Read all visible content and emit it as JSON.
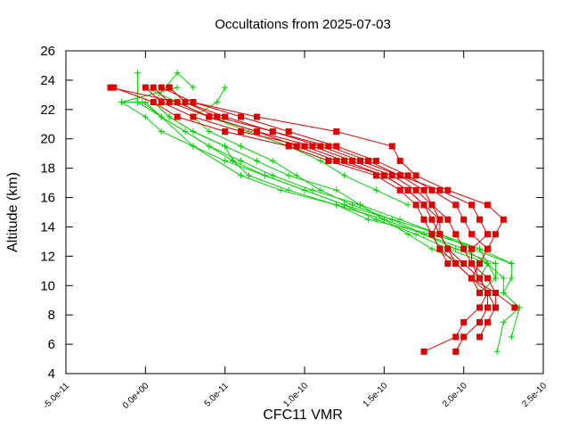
{
  "chart_data": {
    "type": "line",
    "title": "Occultations from 2025-07-03",
    "xlabel": "CFC11 VMR",
    "ylabel": "Altitude (km)",
    "xlim": [
      -5e-11,
      2.5e-10
    ],
    "ylim": [
      4,
      26
    ],
    "x_ticks": [
      -5e-11,
      0,
      5e-11,
      1e-10,
      1.5e-10,
      2e-10,
      2.5e-10
    ],
    "x_tick_labels": [
      "-5.0e-11",
      "0.0e+00",
      "5.0e-11",
      "1.0e-10",
      "1.5e-10",
      "2.0e-10",
      "2.5e-10"
    ],
    "y_ticks": [
      4,
      6,
      8,
      10,
      12,
      14,
      16,
      18,
      20,
      22,
      24,
      26
    ],
    "y_tick_labels": [
      "4",
      "6",
      "8",
      "10",
      "12",
      "14",
      "16",
      "18",
      "20",
      "22",
      "24",
      "26"
    ],
    "grid": false,
    "legend": "none",
    "colors": {
      "green": "#00d000",
      "red": "#e00000"
    },
    "series": [
      {
        "color": "green",
        "marker": "plus",
        "points": [
          [
            2.21e-10,
            5.5
          ],
          [
            2.25e-10,
            7.5
          ],
          [
            2.35e-10,
            8.5
          ],
          [
            2.25e-10,
            9.5
          ],
          [
            2.3e-10,
            10.5
          ],
          [
            2.3e-10,
            11.5
          ],
          [
            2.1e-10,
            12.5
          ],
          [
            1.8e-10,
            13.5
          ],
          [
            1.4e-10,
            14.5
          ],
          [
            1.2e-10,
            15.5
          ],
          [
            8.5e-11,
            16.5
          ],
          [
            6e-11,
            17.5
          ],
          [
            3e-11,
            19.5
          ],
          [
            1e-11,
            21.5
          ],
          [
            -5e-12,
            22.5
          ],
          [
            -5e-12,
            24.5
          ]
        ]
      },
      {
        "color": "green",
        "marker": "plus",
        "points": [
          [
            2.3e-10,
            6.5
          ],
          [
            2.35e-10,
            8.5
          ],
          [
            2.25e-10,
            9.5
          ],
          [
            2.25e-10,
            10.5
          ],
          [
            2.15e-10,
            11.5
          ],
          [
            2.1e-10,
            12.5
          ],
          [
            1.85e-10,
            13.5
          ],
          [
            1.55e-10,
            14.5
          ],
          [
            1.25e-10,
            15.5
          ],
          [
            1e-10,
            16.5
          ],
          [
            7.5e-11,
            17.5
          ],
          [
            5e-11,
            18.5
          ],
          [
            3e-11,
            19.5
          ],
          [
            1e-11,
            20.5
          ],
          [
            0,
            21.5
          ],
          [
            -1.5e-11,
            22.5
          ],
          [
            2e-11,
            23.5
          ]
        ]
      },
      {
        "color": "green",
        "marker": "plus",
        "points": [
          [
            2.1e-10,
            9.5
          ],
          [
            2.2e-10,
            10.5
          ],
          [
            2.15e-10,
            11.5
          ],
          [
            2e-10,
            12.5
          ],
          [
            1.75e-10,
            13.5
          ],
          [
            1.5e-10,
            14.5
          ],
          [
            1.2e-10,
            15.5
          ],
          [
            9e-11,
            16.5
          ],
          [
            6.5e-11,
            17.5
          ],
          [
            5.5e-11,
            18.5
          ],
          [
            5e-11,
            19.5
          ],
          [
            3e-11,
            20.5
          ],
          [
            1.5e-11,
            21.5
          ],
          [
            5e-12,
            22.5
          ],
          [
            2e-11,
            24.5
          ],
          [
            3e-11,
            23.5
          ]
        ]
      },
      {
        "color": "green",
        "marker": "plus",
        "points": [
          [
            2.3e-10,
            11.5
          ],
          [
            2.05e-10,
            12.5
          ],
          [
            1.85e-10,
            13.5
          ],
          [
            1.6e-10,
            14.5
          ],
          [
            1.35e-10,
            15.5
          ],
          [
            1.05e-10,
            16.5
          ],
          [
            8e-11,
            17.5
          ],
          [
            6e-11,
            18.5
          ],
          [
            4e-11,
            19.5
          ],
          [
            2.5e-11,
            20.5
          ],
          [
            1e-11,
            21.5
          ],
          [
            -2e-12,
            22.5
          ],
          [
            -1.5e-11,
            22.5
          ]
        ]
      },
      {
        "color": "green",
        "marker": "plus",
        "points": [
          [
            2.2e-10,
            10.5
          ],
          [
            2.2e-10,
            11.5
          ],
          [
            1.95e-10,
            12.5
          ],
          [
            1.75e-10,
            13.5
          ],
          [
            1.55e-10,
            14.5
          ],
          [
            1.3e-10,
            15.5
          ],
          [
            1.1e-10,
            16.5
          ],
          [
            9.5e-11,
            17.5
          ],
          [
            8e-11,
            18.5
          ],
          [
            6e-11,
            19.5
          ],
          [
            4e-11,
            20.5
          ],
          [
            3e-11,
            21.5
          ],
          [
            4.5e-11,
            22.5
          ],
          [
            5e-11,
            23.5
          ]
        ]
      },
      {
        "color": "green",
        "marker": "plus",
        "points": [
          [
            2.1e-10,
            10.5
          ],
          [
            2.15e-10,
            11.5
          ],
          [
            1.9e-10,
            12.5
          ],
          [
            1.7e-10,
            13.5
          ],
          [
            1.45e-10,
            14.5
          ],
          [
            1.25e-10,
            15.5
          ],
          [
            1e-10,
            16.5
          ],
          [
            7.5e-11,
            17.5
          ],
          [
            5.5e-11,
            18.5
          ],
          [
            4e-11,
            19.5
          ],
          [
            2.5e-11,
            20.5
          ],
          [
            1e-11,
            21.5
          ],
          [
            0,
            22.5
          ]
        ]
      },
      {
        "color": "green",
        "marker": "plus",
        "points": [
          [
            1.65e-10,
            15.5
          ],
          [
            1.45e-10,
            16.5
          ],
          [
            1.25e-10,
            17.5
          ],
          [
            1.1e-10,
            18.5
          ],
          [
            9e-11,
            19.5
          ],
          [
            6.5e-11,
            20.5
          ],
          [
            4e-11,
            21.5
          ],
          [
            2e-11,
            22.5
          ],
          [
            0,
            23.5
          ]
        ]
      },
      {
        "color": "green",
        "marker": "plus",
        "points": [
          [
            2e-10,
            11.5
          ],
          [
            1.8e-10,
            12.5
          ],
          [
            1.65e-10,
            13.5
          ],
          [
            1.5e-10,
            14.5
          ],
          [
            1.35e-10,
            15.5
          ],
          [
            1.2e-10,
            16.5
          ],
          [
            9e-11,
            17.5
          ],
          [
            7e-11,
            18.5
          ],
          [
            5e-11,
            19.5
          ],
          [
            3e-11,
            20.5
          ],
          [
            1.5e-11,
            21.5
          ],
          [
            5e-12,
            22.5
          ]
        ]
      },
      {
        "color": "red",
        "marker": "square",
        "points": [
          [
            1.75e-10,
            5.5
          ],
          [
            1.95e-10,
            6.5
          ],
          [
            2e-10,
            7.5
          ],
          [
            2.1e-10,
            8.5
          ],
          [
            2.15e-10,
            9.5
          ],
          [
            2.05e-10,
            10.5
          ],
          [
            1.95e-10,
            11.5
          ],
          [
            1.85e-10,
            12.5
          ],
          [
            1.8e-10,
            13.5
          ],
          [
            1.75e-10,
            14.5
          ],
          [
            1.7e-10,
            15.5
          ],
          [
            1.6e-10,
            16.5
          ],
          [
            1.45e-10,
            17.5
          ],
          [
            1.15e-10,
            18.5
          ],
          [
            9e-11,
            19.5
          ],
          [
            5e-11,
            20.5
          ],
          [
            2e-11,
            21.5
          ],
          [
            5e-12,
            22.5
          ],
          [
            -2e-11,
            23.5
          ]
        ]
      },
      {
        "color": "red",
        "marker": "square",
        "points": [
          [
            1.95e-10,
            5.5
          ],
          [
            2e-10,
            6.5
          ],
          [
            2.1e-10,
            7.5
          ],
          [
            2.15e-10,
            8.5
          ],
          [
            2.15e-10,
            9.5
          ],
          [
            2.1e-10,
            10.5
          ],
          [
            2e-10,
            11.5
          ],
          [
            1.9e-10,
            12.5
          ],
          [
            1.85e-10,
            13.5
          ],
          [
            1.8e-10,
            14.5
          ],
          [
            1.75e-10,
            15.5
          ],
          [
            1.65e-10,
            16.5
          ],
          [
            1.5e-10,
            17.5
          ],
          [
            1.25e-10,
            18.5
          ],
          [
            1e-10,
            19.5
          ],
          [
            6e-11,
            20.5
          ],
          [
            3e-11,
            21.5
          ],
          [
            1e-11,
            22.5
          ],
          [
            0,
            23.5
          ]
        ]
      },
      {
        "color": "red",
        "marker": "square",
        "points": [
          [
            2.1e-10,
            6.5
          ],
          [
            2.15e-10,
            7.5
          ],
          [
            2.2e-10,
            8.5
          ],
          [
            2.2e-10,
            9.5
          ],
          [
            2.15e-10,
            10.5
          ],
          [
            2.05e-10,
            11.5
          ],
          [
            2e-10,
            12.5
          ],
          [
            1.95e-10,
            13.5
          ],
          [
            1.9e-10,
            14.5
          ],
          [
            1.8e-10,
            15.5
          ],
          [
            1.7e-10,
            16.5
          ],
          [
            1.55e-10,
            17.5
          ],
          [
            1.3e-10,
            18.5
          ],
          [
            1.05e-10,
            19.5
          ],
          [
            7e-11,
            20.5
          ],
          [
            4e-11,
            21.5
          ],
          [
            1.5e-11,
            22.5
          ],
          [
            5e-12,
            23.5
          ]
        ]
      },
      {
        "color": "red",
        "marker": "square",
        "points": [
          [
            2.32e-10,
            8.5
          ],
          [
            2.2e-10,
            9.5
          ],
          [
            2.05e-10,
            10.5
          ],
          [
            2.1e-10,
            11.5
          ],
          [
            2.15e-10,
            12.5
          ],
          [
            2.2e-10,
            13.5
          ],
          [
            2.25e-10,
            14.5
          ],
          [
            2.15e-10,
            15.5
          ],
          [
            1.9e-10,
            16.5
          ],
          [
            1.7e-10,
            17.5
          ],
          [
            1.6e-10,
            18.5
          ],
          [
            1.55e-10,
            19.5
          ],
          [
            1.2e-10,
            20.5
          ],
          [
            7e-11,
            21.5
          ],
          [
            3e-11,
            22.5
          ],
          [
            1e-11,
            23.5
          ]
        ]
      },
      {
        "color": "red",
        "marker": "square",
        "points": [
          [
            2.2e-10,
            8.5
          ],
          [
            2.15e-10,
            9.5
          ],
          [
            2.1e-10,
            10.5
          ],
          [
            2.05e-10,
            11.5
          ],
          [
            2.05e-10,
            12.5
          ],
          [
            2.15e-10,
            13.5
          ],
          [
            2.1e-10,
            14.5
          ],
          [
            2.05e-10,
            15.5
          ],
          [
            1.85e-10,
            16.5
          ],
          [
            1.6e-10,
            17.5
          ],
          [
            1.4e-10,
            18.5
          ],
          [
            1.15e-10,
            19.5
          ],
          [
            8e-11,
            20.5
          ],
          [
            4.5e-11,
            21.5
          ],
          [
            2.5e-11,
            22.5
          ],
          [
            1.5e-11,
            23.5
          ]
        ]
      },
      {
        "color": "red",
        "marker": "square",
        "points": [
          [
            2.1e-10,
            9.5
          ],
          [
            2.05e-10,
            10.5
          ],
          [
            1.95e-10,
            11.5
          ],
          [
            1.9e-10,
            12.5
          ],
          [
            1.85e-10,
            13.5
          ],
          [
            1.85e-10,
            14.5
          ],
          [
            1.8e-10,
            15.5
          ],
          [
            1.75e-10,
            16.5
          ],
          [
            1.6e-10,
            17.5
          ],
          [
            1.35e-10,
            18.5
          ],
          [
            1.1e-10,
            19.5
          ],
          [
            8e-11,
            20.5
          ],
          [
            5e-11,
            21.5
          ],
          [
            2.5e-11,
            22.5
          ],
          [
            1.5e-11,
            23.5
          ]
        ]
      },
      {
        "color": "red",
        "marker": "square",
        "points": [
          [
            2.15e-10,
            12.5
          ],
          [
            2.05e-10,
            13.5
          ],
          [
            2e-10,
            14.5
          ],
          [
            1.95e-10,
            15.5
          ],
          [
            1.8e-10,
            16.5
          ],
          [
            1.65e-10,
            17.5
          ],
          [
            1.45e-10,
            18.5
          ],
          [
            1.2e-10,
            19.5
          ],
          [
            9e-11,
            20.5
          ],
          [
            6e-11,
            21.5
          ],
          [
            3e-11,
            22.5
          ]
        ]
      },
      {
        "color": "red",
        "marker": "square",
        "points": [
          [
            1.9e-10,
            11.5
          ],
          [
            1.85e-10,
            12.5
          ],
          [
            1.8e-10,
            13.5
          ],
          [
            1.85e-10,
            14.5
          ],
          [
            1.75e-10,
            15.5
          ],
          [
            1.65e-10,
            16.5
          ],
          [
            1.5e-10,
            17.5
          ],
          [
            1.2e-10,
            18.5
          ],
          [
            9.5e-11,
            19.5
          ],
          [
            7e-11,
            20.5
          ],
          [
            4e-11,
            21.5
          ],
          [
            2e-11,
            22.5
          ],
          [
            -2.2e-11,
            23.5
          ]
        ]
      }
    ]
  }
}
